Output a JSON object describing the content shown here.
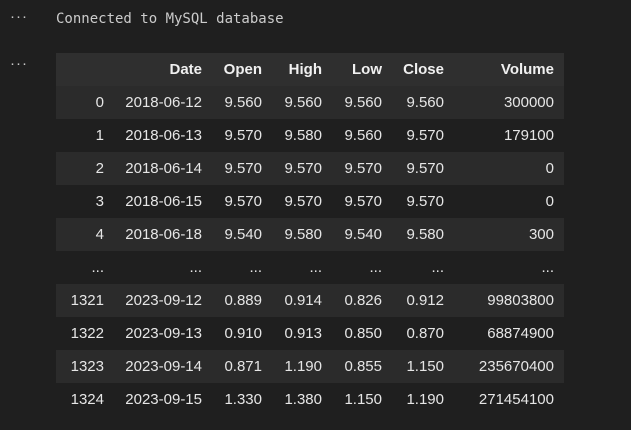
{
  "outputs": {
    "first": {
      "menu_glyph": "···",
      "text": "Connected to MySQL database"
    },
    "second": {
      "menu_glyph": "···"
    }
  },
  "table": {
    "columns": [
      "",
      "Date",
      "Open",
      "High",
      "Low",
      "Close",
      "Volume"
    ],
    "rows": [
      [
        "0",
        "2018-06-12",
        "9.560",
        "9.560",
        "9.560",
        "9.560",
        "300000"
      ],
      [
        "1",
        "2018-06-13",
        "9.570",
        "9.580",
        "9.560",
        "9.570",
        "179100"
      ],
      [
        "2",
        "2018-06-14",
        "9.570",
        "9.570",
        "9.570",
        "9.570",
        "0"
      ],
      [
        "3",
        "2018-06-15",
        "9.570",
        "9.570",
        "9.570",
        "9.570",
        "0"
      ],
      [
        "4",
        "2018-06-18",
        "9.540",
        "9.580",
        "9.540",
        "9.580",
        "300"
      ],
      [
        "...",
        "...",
        "...",
        "...",
        "...",
        "...",
        "..."
      ],
      [
        "1321",
        "2023-09-12",
        "0.889",
        "0.914",
        "0.826",
        "0.912",
        "99803800"
      ],
      [
        "1322",
        "2023-09-13",
        "0.910",
        "0.913",
        "0.850",
        "0.870",
        "68874900"
      ],
      [
        "1323",
        "2023-09-14",
        "0.871",
        "1.190",
        "0.855",
        "1.150",
        "235670400"
      ],
      [
        "1324",
        "2023-09-15",
        "1.330",
        "1.380",
        "1.150",
        "1.190",
        "271454100"
      ]
    ]
  },
  "colors": {
    "background": "#1f1f1f",
    "row_stripe": "#2b2b2b",
    "header_bg": "#2f2f2f",
    "text": "#e6e6e6"
  }
}
